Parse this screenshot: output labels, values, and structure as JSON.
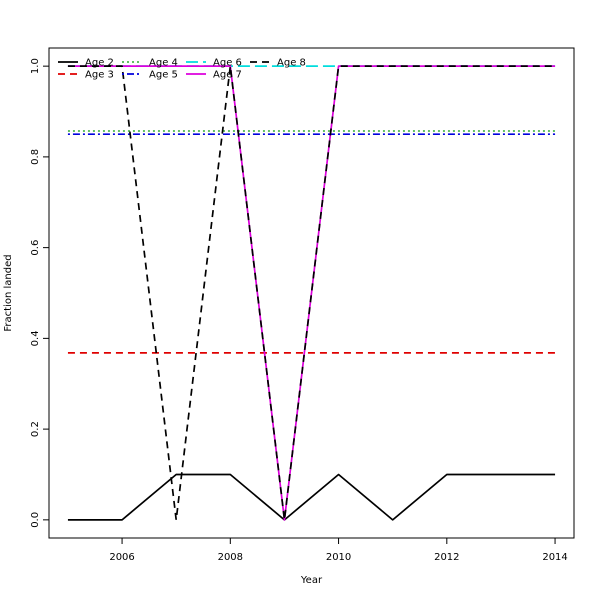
{
  "chart_data": {
    "type": "line",
    "title": "",
    "xlabel": "Year",
    "ylabel": "Fraction landed",
    "x": [
      2005,
      2006,
      2007,
      2008,
      2009,
      2010,
      2011,
      2012,
      2013,
      2014
    ],
    "xlim": [
      2004.65,
      2014.35
    ],
    "ylim": [
      -0.04,
      1.04
    ],
    "x_ticks": [
      2006,
      2008,
      2010,
      2012,
      2014
    ],
    "x_tick_labels": [
      "2006",
      "2008",
      "2010",
      "2012",
      "2014"
    ],
    "y_ticks": [
      0.0,
      0.2,
      0.4,
      0.6,
      0.8,
      1.0
    ],
    "y_tick_labels": [
      "0.0",
      "0.2",
      "0.4",
      "0.6",
      "0.8",
      "1.0"
    ],
    "grid": false,
    "legend_position": "top-left",
    "series": [
      {
        "name": "Age 2",
        "color": "#000000",
        "dash": "solid",
        "values": [
          0,
          0,
          0.1,
          0.1,
          0,
          0.1,
          0,
          0.1,
          0.1,
          0.1
        ]
      },
      {
        "name": "Age 3",
        "color": "#DF0000",
        "dash": "dashed",
        "values": [
          0.368,
          0.368,
          0.368,
          0.368,
          0.368,
          0.368,
          0.368,
          0.368,
          0.368,
          0.368
        ]
      },
      {
        "name": "Age 4",
        "color": "#4FB84F",
        "dash": "dotted",
        "values": [
          0.857,
          0.857,
          0.857,
          0.857,
          0.857,
          0.857,
          0.857,
          0.857,
          0.857,
          0.857
        ]
      },
      {
        "name": "Age 5",
        "color": "#0000DD",
        "dash": "dotdash",
        "values": [
          0.85,
          0.85,
          0.85,
          0.85,
          0.85,
          0.85,
          0.85,
          0.85,
          0.85,
          0.85
        ]
      },
      {
        "name": "Age 6",
        "color": "#00DDDD",
        "dash": "longdash",
        "values": [
          1,
          1,
          1,
          1,
          1,
          1,
          1,
          1,
          1,
          1
        ]
      },
      {
        "name": "Age 7",
        "color": "#DD00DD",
        "dash": "solid",
        "values": [
          1,
          1,
          1,
          1,
          0,
          1,
          1,
          1,
          1,
          1
        ]
      },
      {
        "name": "Age 8",
        "color": "#000000",
        "dash": "dashed",
        "values": [
          1,
          1,
          0,
          1,
          0,
          1,
          1,
          1,
          1,
          1
        ]
      }
    ]
  }
}
